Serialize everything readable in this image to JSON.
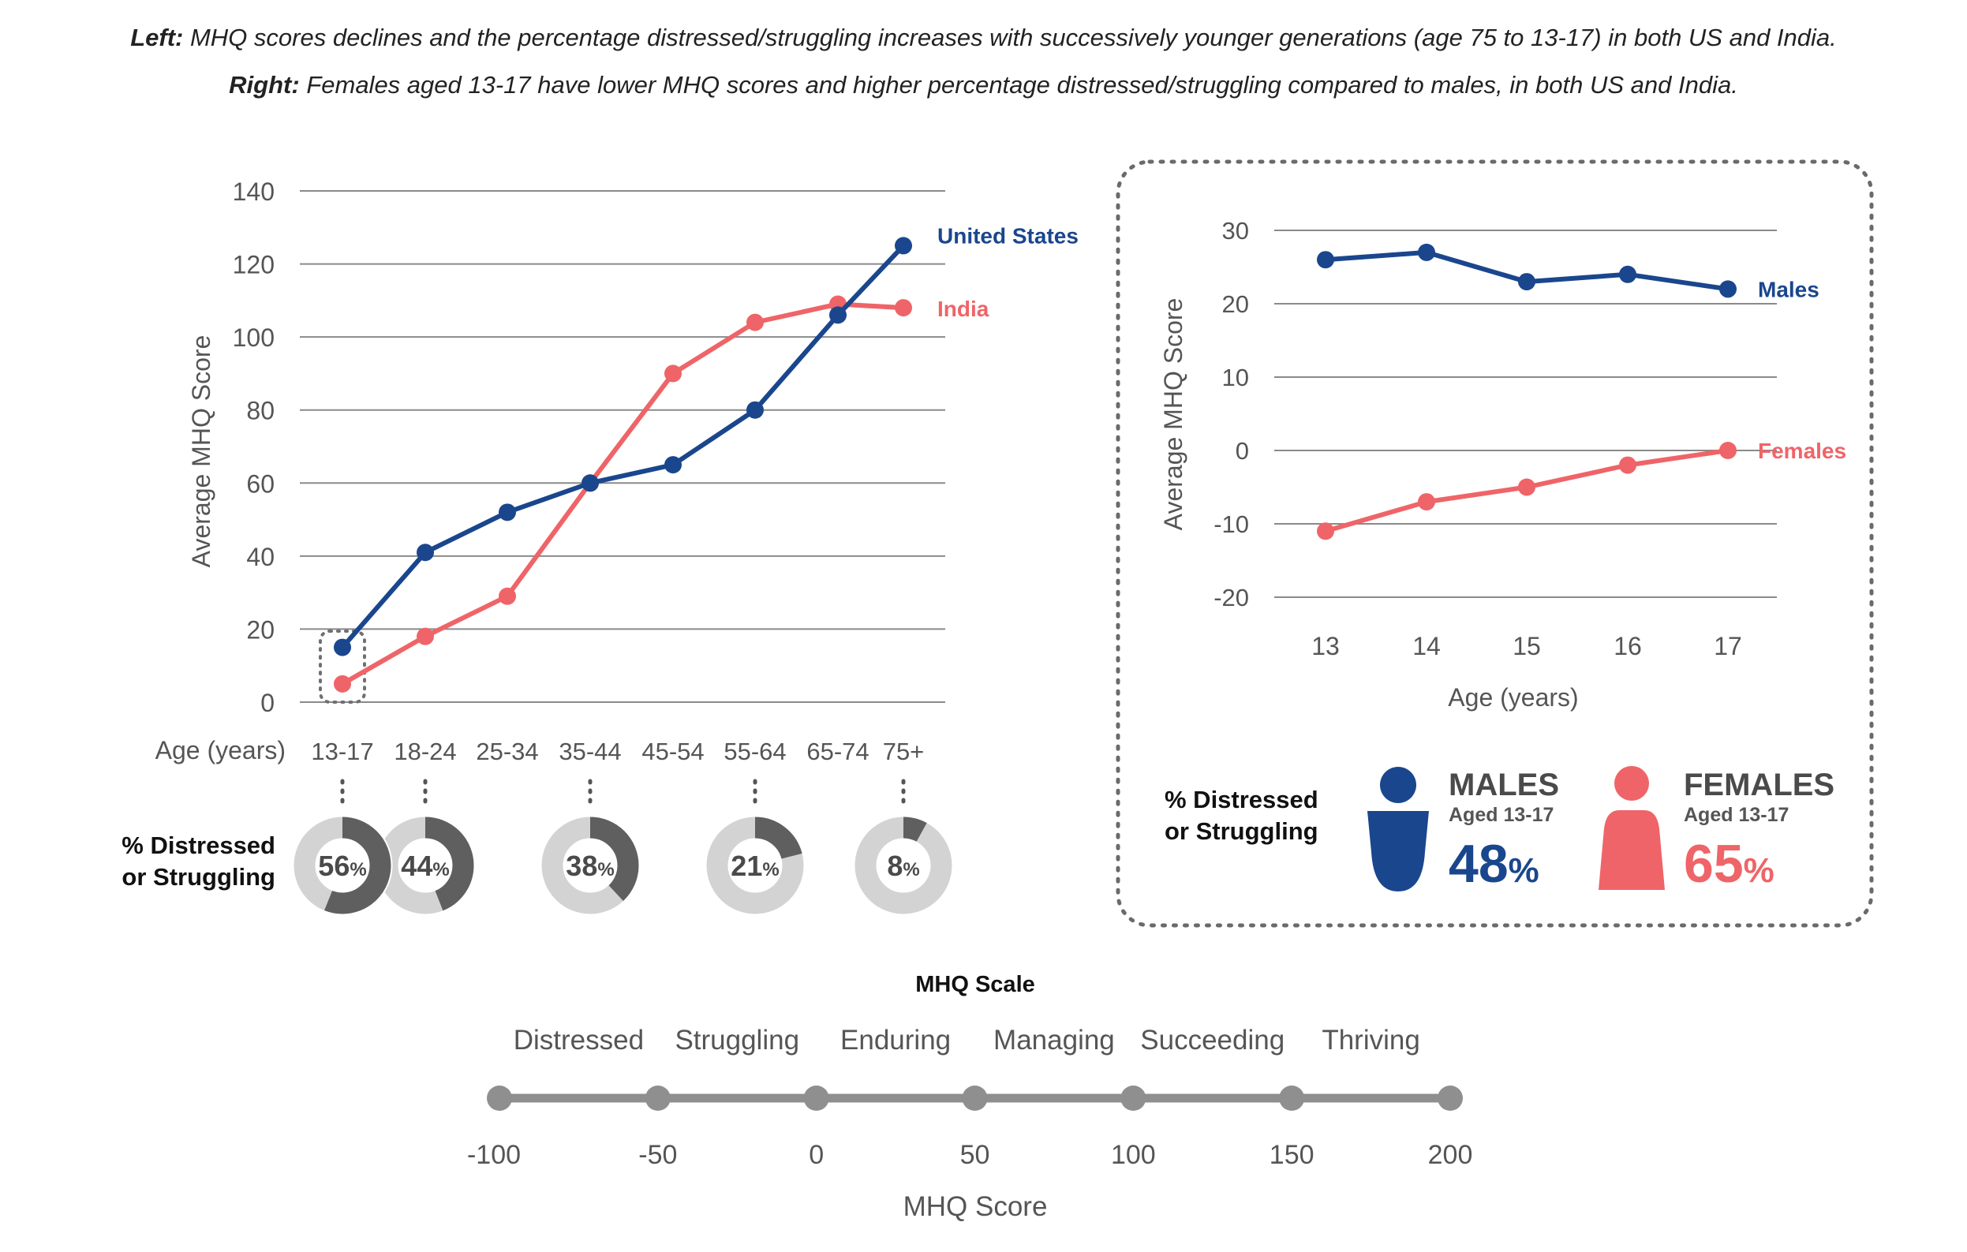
{
  "captions": {
    "left_lead": "Left:",
    "left_text": " MHQ scores declines and the percentage distressed/struggling increases with successively younger generations (age 75 to 13-17) in both US and India.",
    "right_lead": "Right:",
    "right_text": " Females aged 13-17 have lower MHQ scores and higher percentage distressed/struggling compared to males, in both US and India."
  },
  "colors": {
    "blue": "#1a468d",
    "red": "#ef6468",
    "dark_gray": "#5f5f5f",
    "light_gray": "#d3d3d3",
    "scale_gray": "#8f8f8f"
  },
  "chart_data": [
    {
      "type": "line",
      "categories": [
        "13-17",
        "18-24",
        "25-34",
        "35-44",
        "45-54",
        "55-64",
        "65-74",
        "75+"
      ],
      "series": [
        {
          "name": "United States",
          "values": [
            15,
            41,
            52,
            60,
            65,
            80,
            106,
            125
          ]
        },
        {
          "name": "India",
          "values": [
            5,
            18,
            29,
            60,
            90,
            104,
            109,
            108
          ]
        }
      ],
      "xlabel": "Age (years)",
      "ylabel": "Average MHQ Score",
      "ylim": [
        0,
        140
      ],
      "yticks": [
        "0",
        "20",
        "40",
        "60",
        "80",
        "100",
        "120",
        "140"
      ],
      "grid": true,
      "legend": "end-of-line labels"
    },
    {
      "type": "line",
      "categories": [
        "13",
        "14",
        "15",
        "16",
        "17"
      ],
      "series": [
        {
          "name": "Males",
          "values": [
            26,
            27,
            23,
            24,
            22
          ]
        },
        {
          "name": "Females",
          "values": [
            -11,
            -7,
            -5,
            -2,
            0
          ]
        }
      ],
      "xlabel": "Age (years)",
      "ylabel": "Average MHQ Score",
      "ylim": [
        -20,
        30
      ],
      "yticks": [
        "-20",
        "-10",
        "0",
        "10",
        "20",
        "30"
      ],
      "grid": true,
      "legend": "end-of-line labels"
    }
  ],
  "distress_left": {
    "label_line1": "% Distressed",
    "label_line2": "or Struggling",
    "donuts": [
      {
        "category": "13-17",
        "percent": 56,
        "text": "56",
        "unit": "%"
      },
      {
        "category": "18-24",
        "percent": 44,
        "text": "44",
        "unit": "%"
      },
      {
        "category": "35-44",
        "percent": 38,
        "text": "38",
        "unit": "%"
      },
      {
        "category": "55-64",
        "percent": 21,
        "text": "21",
        "unit": "%"
      },
      {
        "category": "75+",
        "percent": 8,
        "text": "8",
        "unit": "%"
      }
    ]
  },
  "distress_right": {
    "label_line1": "% Distressed",
    "label_line2": "or Struggling",
    "males": {
      "title": "MALES",
      "subtitle": "Aged 13-17",
      "value": "48",
      "unit": "%"
    },
    "females": {
      "title": "FEMALES",
      "subtitle": "Aged 13-17",
      "value": "65",
      "unit": "%"
    }
  },
  "scale": {
    "title": "MHQ Scale",
    "categories": [
      "Distressed",
      "Struggling",
      "Enduring",
      "Managing",
      "Succeeding",
      "Thriving"
    ],
    "ticks": [
      "-100",
      "-50",
      "0",
      "50",
      "100",
      "150",
      "200"
    ],
    "tick_values": [
      -100,
      -50,
      0,
      50,
      100,
      150,
      200
    ],
    "xlabel": "MHQ Score"
  }
}
